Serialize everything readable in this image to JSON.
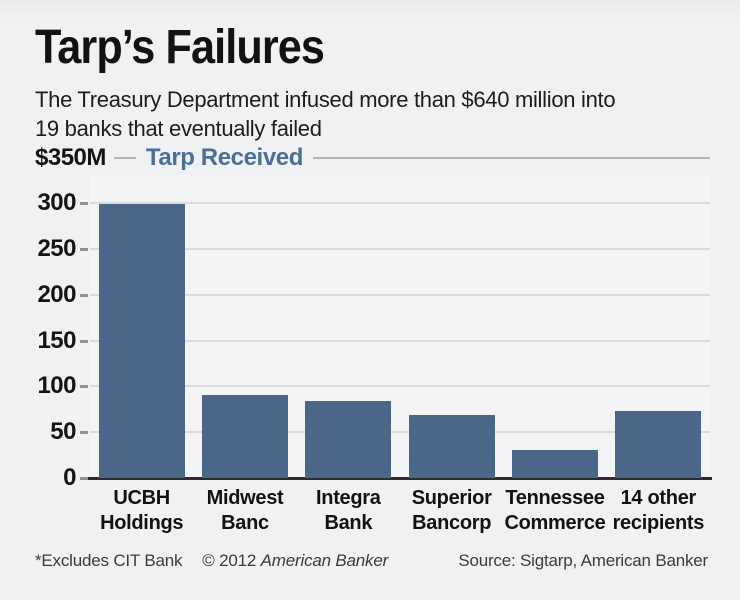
{
  "header": {
    "title": "Tarp’s Failures",
    "subtitle": [
      "The Treasury Department infused more than $640 million into",
      "19 banks that eventually failed"
    ]
  },
  "legend": {
    "axis_max_label": "$350M",
    "series_label": "Tarp Received"
  },
  "chart_data": {
    "type": "bar",
    "title": "Tarp's Failures",
    "subtitle": "The Treasury Department infused more than $640 million into 19 banks that eventually failed",
    "series_name": "Tarp Received",
    "unit": "millions of dollars",
    "categories": [
      "UCBH Holdings",
      "Midwest Banc",
      "Integra Bank",
      "Superior Bancorp",
      "Tennessee Commerce",
      "14 other recipients"
    ],
    "category_lines": [
      [
        "UCBH",
        "Holdings"
      ],
      [
        "Midwest",
        "Banc"
      ],
      [
        "Integra",
        "Bank"
      ],
      [
        "Superior",
        "Bancorp"
      ],
      [
        "Tennessee",
        "Commerce"
      ],
      [
        "14 other",
        "recipients"
      ]
    ],
    "values": [
      299,
      90,
      84,
      69,
      30,
      73
    ],
    "ylim": [
      0,
      350
    ],
    "yticks": [
      300,
      250,
      200,
      150,
      100,
      50,
      0
    ],
    "axis_max_label": "$350M",
    "grid": true,
    "legend_position": "top-left",
    "bar_color": "#4a6789"
  },
  "colors": {
    "background": "#f0f1f3",
    "plot_background": "#f3f4f6",
    "bar": "#4a6789",
    "grid_line": "#d9dadc",
    "axis_line": "#2c2c2c",
    "legend_text": "#4c6e99"
  },
  "footer": {
    "note": "*Excludes CIT Bank",
    "copyright_prefix": "© 2012 ",
    "copyright_brand": "American Banker",
    "source": "Source: Sigtarp, American Banker"
  }
}
